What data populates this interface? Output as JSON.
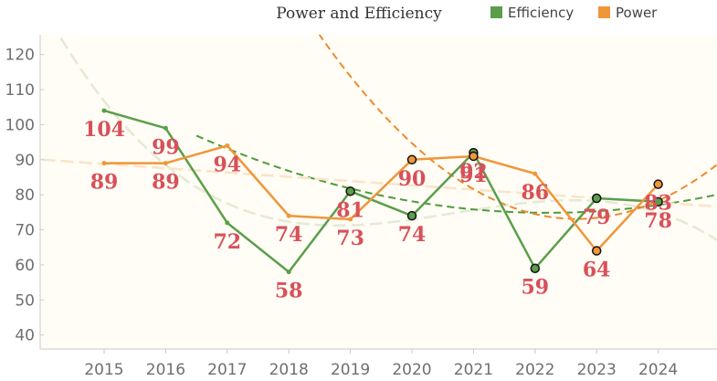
{
  "chart_data": {
    "type": "line",
    "title": "Power and Efficiency",
    "xlabel": "",
    "ylabel": "",
    "categories": [
      "2015",
      "2016",
      "2017",
      "2018",
      "2019",
      "2020",
      "2021",
      "2022",
      "2023",
      "2024"
    ],
    "y_ticks": [
      40,
      50,
      60,
      70,
      80,
      90,
      100,
      110,
      120
    ],
    "ylim": [
      36,
      122
    ],
    "grid": false,
    "legend_position": "top-right",
    "series": [
      {
        "name": "Efficiency",
        "color": "#5a9e4b",
        "values": [
          104,
          99,
          72,
          58,
          81,
          74,
          92,
          59,
          79,
          78
        ],
        "highlighted_years": [
          "2019",
          "2020",
          "2021",
          "2022",
          "2023",
          "2024"
        ],
        "trend_dashed_color": "#4e9a3e",
        "trend_light_color": "#e3ead6"
      },
      {
        "name": "Power",
        "color": "#f0963a",
        "values": [
          89,
          89,
          94,
          74,
          73,
          90,
          91,
          86,
          64,
          83
        ],
        "highlighted_years": [
          "2020",
          "2021",
          "2023",
          "2024"
        ],
        "trend_dashed_color": "#ee8a2e",
        "trend_light_color": "#fbe3c8"
      }
    ],
    "data_label_color": "#d8505a",
    "plot_background": "#fffdf5"
  }
}
